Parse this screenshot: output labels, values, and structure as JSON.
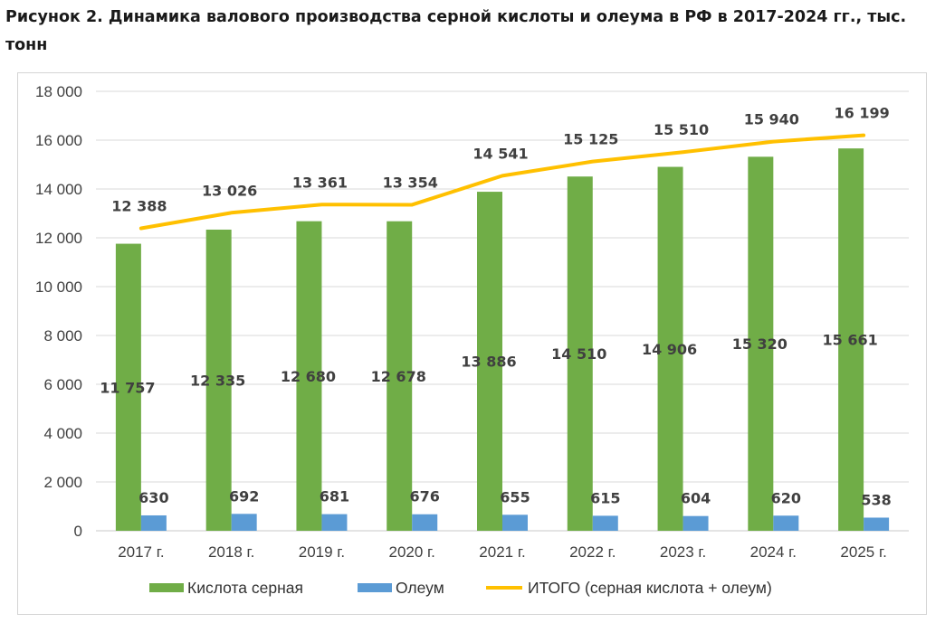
{
  "caption": "Рисунок 2. Динамика валового производства серной кислоты и олеума в РФ в 2017-2024 гг., тыс. тонн",
  "chart_data": {
    "type": "bar",
    "categories": [
      "2017 г.",
      "2018 г.",
      "2019 г.",
      "2020 г.",
      "2021 г.",
      "2022 г.",
      "2023 г.",
      "2024 г.",
      "2025 г."
    ],
    "series": [
      {
        "name": "Кислота серная",
        "type": "bar",
        "color": "#70ad47",
        "values": [
          11757,
          12335,
          12680,
          12678,
          13886,
          14510,
          14906,
          15320,
          15661
        ],
        "labels": [
          "11 757",
          "12 335",
          "12 680",
          "12 678",
          "13 886",
          "14 510",
          "14 906",
          "15 320",
          "15 661"
        ]
      },
      {
        "name": "Олеум",
        "type": "bar",
        "color": "#5b9bd5",
        "values": [
          630,
          692,
          681,
          676,
          655,
          615,
          604,
          620,
          538
        ],
        "labels": [
          "630",
          "692",
          "681",
          "676",
          "655",
          "615",
          "604",
          "620",
          "538"
        ]
      },
      {
        "name": "ИТОГО (серная кислота + олеум)",
        "type": "line",
        "color": "#ffc000",
        "values": [
          12388,
          13026,
          13361,
          13354,
          14541,
          15125,
          15510,
          15940,
          16199
        ],
        "labels": [
          "12 388",
          "13 026",
          "13 361",
          "13 354",
          "14 541",
          "15 125",
          "15 510",
          "15 940",
          "16 199"
        ]
      }
    ],
    "ylim": [
      0,
      18000
    ],
    "yticks": [
      0,
      2000,
      4000,
      6000,
      8000,
      10000,
      12000,
      14000,
      16000,
      18000
    ],
    "ytick_labels": [
      "0",
      "2 000",
      "4 000",
      "6 000",
      "8 000",
      "10 000",
      "12 000",
      "14 000",
      "16 000",
      "18 000"
    ],
    "grid": true,
    "legend": "bottom"
  }
}
